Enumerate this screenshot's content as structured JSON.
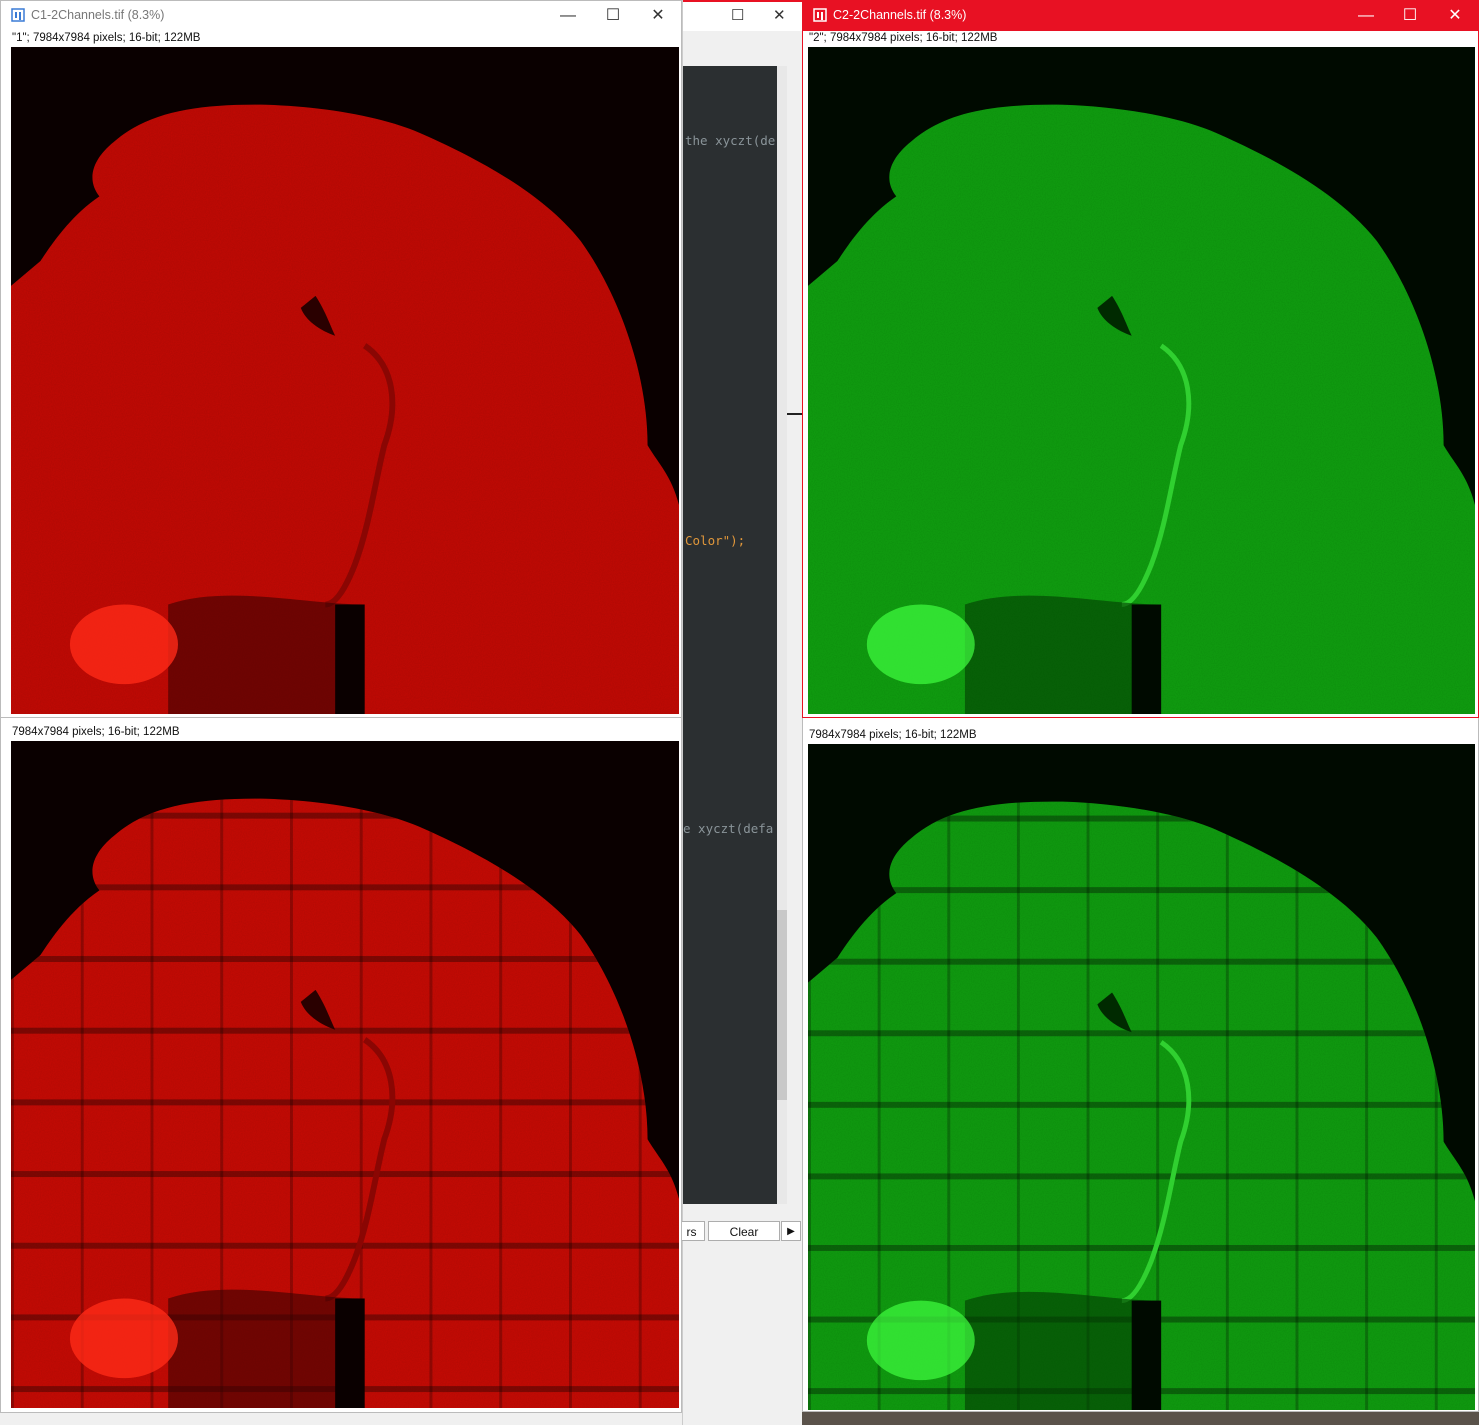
{
  "colors": {
    "active_titlebar": "#e81123",
    "red_channel": "#ff1a10",
    "green_channel": "#22d020",
    "editor_bg": "#2b2f31"
  },
  "windows": [
    {
      "title": "C1-2Channels.tif (8.3%)",
      "info": "\"1\"; 7984x7984 pixels; 16-bit; 122MB",
      "channel": "red",
      "active": false
    },
    {
      "title": "C2-2Channels.tif (8.3%)",
      "info": "\"2\"; 7984x7984 pixels; 16-bit; 122MB",
      "channel": "green",
      "active": true
    },
    {
      "info": "7984x7984 pixels; 16-bit; 122MB",
      "channel": "red"
    },
    {
      "info": "7984x7984 pixels; 16-bit; 122MB",
      "channel": "green"
    }
  ],
  "editor": {
    "code_lines": [
      "the xyczt(de",
      "Color\");",
      "e xyczt(defa"
    ],
    "buttons": [
      "rs",
      "Clear"
    ],
    "run_arrow": "▶"
  },
  "window_controls": {
    "minimize": "—",
    "maximize": "☐",
    "close": "✕"
  }
}
